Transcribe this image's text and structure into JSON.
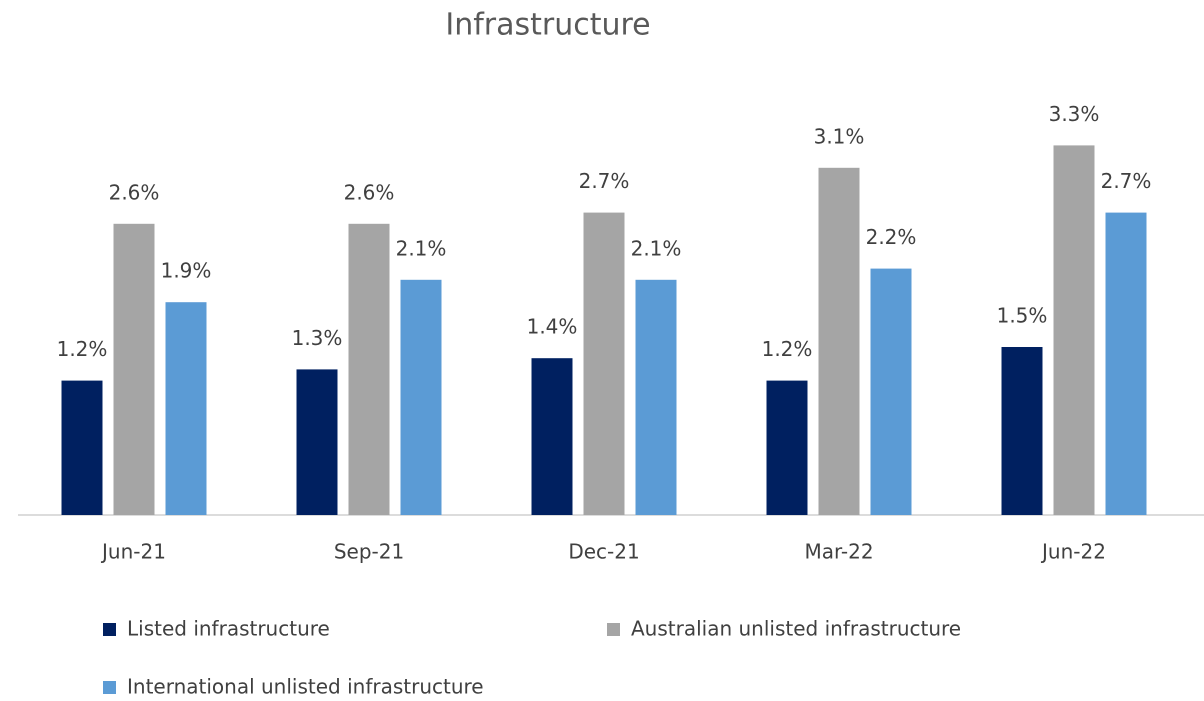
{
  "chart_data": {
    "type": "bar",
    "title": "Infrastructure",
    "categories": [
      "Jun-21",
      "Sep-21",
      "Dec-21",
      "Mar-22",
      "Jun-22"
    ],
    "series": [
      {
        "name": "Listed infrastructure",
        "color": "#002060",
        "values": [
          1.2,
          1.3,
          1.4,
          1.2,
          1.5
        ],
        "value_labels": [
          "1.2%",
          "1.3%",
          "1.4%",
          "1.2%",
          "1.5%"
        ]
      },
      {
        "name": "Australian unlisted infrastructure",
        "color": "#a5a5a5",
        "values": [
          2.6,
          2.6,
          2.7,
          3.1,
          3.3
        ],
        "value_labels": [
          "2.6%",
          "2.6%",
          "2.7%",
          "3.1%",
          "3.3%"
        ]
      },
      {
        "name": "International unlisted infrastructure",
        "color": "#5b9bd5",
        "values": [
          1.9,
          2.1,
          2.1,
          2.2,
          2.7
        ],
        "value_labels": [
          "1.9%",
          "2.1%",
          "2.1%",
          "2.2%",
          "2.7%"
        ]
      }
    ],
    "ylim": [
      0,
      3.5
    ],
    "legend": "bottom"
  }
}
